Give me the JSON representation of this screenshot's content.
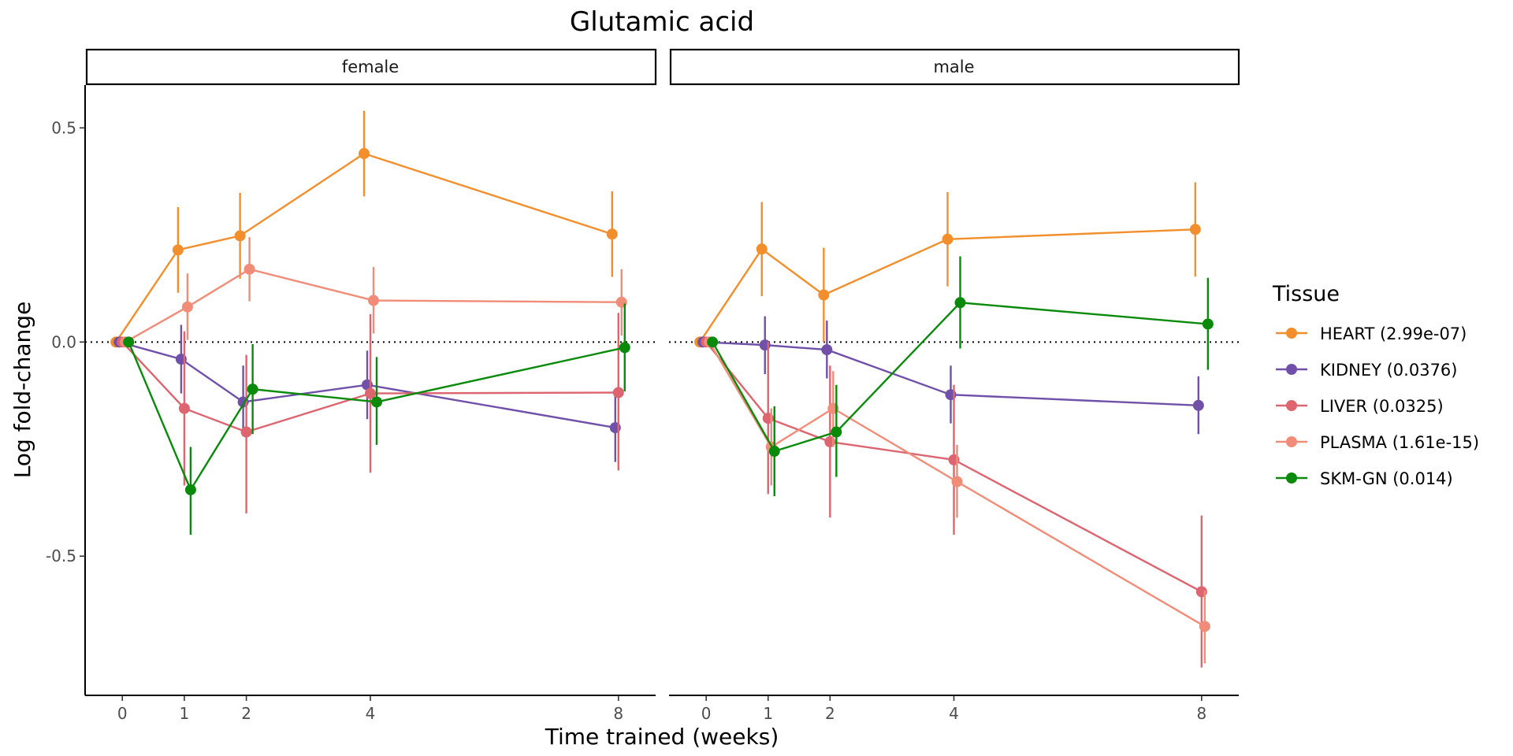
{
  "chart_data": {
    "type": "line",
    "title": "Glutamic acid",
    "xlabel": "Time trained (weeks)",
    "ylabel": "Log fold-change",
    "x_ticks": [
      0,
      1,
      2,
      4,
      8
    ],
    "x_tick_labels": [
      "0",
      "1",
      "2",
      "4",
      "8"
    ],
    "xlim": [
      -0.6,
      8.6
    ],
    "y_ticks": [
      0.5,
      0.0,
      -0.5
    ],
    "y_tick_labels": [
      "0.5",
      "0.0",
      "-0.5"
    ],
    "ylim": [
      -0.825,
      0.6
    ],
    "reference_line_y": 0,
    "legend": {
      "title": "Tissue",
      "position": "right"
    },
    "panels": [
      {
        "label": "female",
        "series": [
          {
            "name": "HEART (2.99e-07)",
            "color": "#F28E2B",
            "points": [
              {
                "x": 0,
                "y": 0,
                "lo": 0,
                "hi": 0
              },
              {
                "x": 1,
                "y": 0.215,
                "lo": 0.115,
                "hi": 0.315
              },
              {
                "x": 2,
                "y": 0.248,
                "lo": 0.148,
                "hi": 0.348
              },
              {
                "x": 4,
                "y": 0.44,
                "lo": 0.34,
                "hi": 0.54
              },
              {
                "x": 8,
                "y": 0.252,
                "lo": 0.152,
                "hi": 0.352
              }
            ]
          },
          {
            "name": "KIDNEY (0.0376)",
            "color": "#7050A8",
            "points": [
              {
                "x": 0,
                "y": 0,
                "lo": 0,
                "hi": 0
              },
              {
                "x": 1,
                "y": -0.04,
                "lo": -0.12,
                "hi": 0.04
              },
              {
                "x": 2,
                "y": -0.14,
                "lo": -0.22,
                "hi": -0.055
              },
              {
                "x": 4,
                "y": -0.1,
                "lo": -0.18,
                "hi": -0.02
              },
              {
                "x": 8,
                "y": -0.2,
                "lo": -0.28,
                "hi": -0.12
              }
            ]
          },
          {
            "name": "LIVER (0.0325)",
            "color": "#DC6570",
            "points": [
              {
                "x": 0,
                "y": 0,
                "lo": 0,
                "hi": 0
              },
              {
                "x": 1,
                "y": -0.155,
                "lo": -0.335,
                "hi": 0.025
              },
              {
                "x": 2,
                "y": -0.21,
                "lo": -0.4,
                "hi": -0.03
              },
              {
                "x": 4,
                "y": -0.12,
                "lo": -0.305,
                "hi": 0.065
              },
              {
                "x": 8,
                "y": -0.118,
                "lo": -0.3,
                "hi": 0.068
              }
            ]
          },
          {
            "name": "PLASMA (1.61e-15)",
            "color": "#F08C78",
            "points": [
              {
                "x": 0,
                "y": 0,
                "lo": 0,
                "hi": 0
              },
              {
                "x": 1,
                "y": 0.082,
                "lo": 0.005,
                "hi": 0.16
              },
              {
                "x": 2,
                "y": 0.17,
                "lo": 0.095,
                "hi": 0.245
              },
              {
                "x": 4,
                "y": 0.097,
                "lo": 0.02,
                "hi": 0.175
              },
              {
                "x": 8,
                "y": 0.093,
                "lo": 0.015,
                "hi": 0.17
              }
            ]
          },
          {
            "name": "SKM-GN (0.014)",
            "color": "#0A8A0A",
            "points": [
              {
                "x": 0,
                "y": 0,
                "lo": 0,
                "hi": 0
              },
              {
                "x": 1,
                "y": -0.345,
                "lo": -0.45,
                "hi": -0.245
              },
              {
                "x": 2,
                "y": -0.11,
                "lo": -0.215,
                "hi": -0.005
              },
              {
                "x": 4,
                "y": -0.14,
                "lo": -0.24,
                "hi": -0.035
              },
              {
                "x": 8,
                "y": -0.013,
                "lo": -0.115,
                "hi": 0.09
              }
            ]
          }
        ]
      },
      {
        "label": "male",
        "series": [
          {
            "name": "HEART (2.99e-07)",
            "color": "#F28E2B",
            "points": [
              {
                "x": 0,
                "y": 0,
                "lo": 0,
                "hi": 0
              },
              {
                "x": 1,
                "y": 0.217,
                "lo": 0.107,
                "hi": 0.327
              },
              {
                "x": 2,
                "y": 0.11,
                "lo": 0.0,
                "hi": 0.22
              },
              {
                "x": 4,
                "y": 0.24,
                "lo": 0.13,
                "hi": 0.35
              },
              {
                "x": 8,
                "y": 0.263,
                "lo": 0.153,
                "hi": 0.373
              }
            ]
          },
          {
            "name": "KIDNEY (0.0376)",
            "color": "#7050A8",
            "points": [
              {
                "x": 0,
                "y": 0,
                "lo": 0,
                "hi": 0
              },
              {
                "x": 1,
                "y": -0.007,
                "lo": -0.075,
                "hi": 0.06
              },
              {
                "x": 2,
                "y": -0.018,
                "lo": -0.085,
                "hi": 0.05
              },
              {
                "x": 4,
                "y": -0.123,
                "lo": -0.19,
                "hi": -0.055
              },
              {
                "x": 8,
                "y": -0.148,
                "lo": -0.215,
                "hi": -0.08
              }
            ]
          },
          {
            "name": "LIVER (0.0325)",
            "color": "#DC6570",
            "points": [
              {
                "x": 0,
                "y": 0,
                "lo": 0,
                "hi": 0
              },
              {
                "x": 1,
                "y": -0.178,
                "lo": -0.355,
                "hi": 0.0
              },
              {
                "x": 2,
                "y": -0.233,
                "lo": -0.41,
                "hi": -0.055
              },
              {
                "x": 4,
                "y": -0.275,
                "lo": -0.45,
                "hi": -0.1
              },
              {
                "x": 8,
                "y": -0.583,
                "lo": -0.76,
                "hi": -0.405
              }
            ]
          },
          {
            "name": "PLASMA (1.61e-15)",
            "color": "#F08C78",
            "points": [
              {
                "x": 0,
                "y": 0,
                "lo": 0,
                "hi": 0
              },
              {
                "x": 1,
                "y": -0.245,
                "lo": -0.335,
                "hi": -0.155
              },
              {
                "x": 2,
                "y": -0.155,
                "lo": -0.245,
                "hi": -0.068
              },
              {
                "x": 4,
                "y": -0.326,
                "lo": -0.41,
                "hi": -0.24
              },
              {
                "x": 8,
                "y": -0.664,
                "lo": -0.75,
                "hi": -0.58
              }
            ]
          },
          {
            "name": "SKM-GN (0.014)",
            "color": "#0A8A0A",
            "points": [
              {
                "x": 0,
                "y": 0,
                "lo": 0,
                "hi": 0
              },
              {
                "x": 1,
                "y": -0.255,
                "lo": -0.36,
                "hi": -0.15
              },
              {
                "x": 2,
                "y": -0.21,
                "lo": -0.315,
                "hi": -0.1
              },
              {
                "x": 4,
                "y": 0.092,
                "lo": -0.015,
                "hi": 0.2
              },
              {
                "x": 8,
                "y": 0.042,
                "lo": -0.065,
                "hi": 0.15
              }
            ]
          }
        ]
      }
    ]
  }
}
